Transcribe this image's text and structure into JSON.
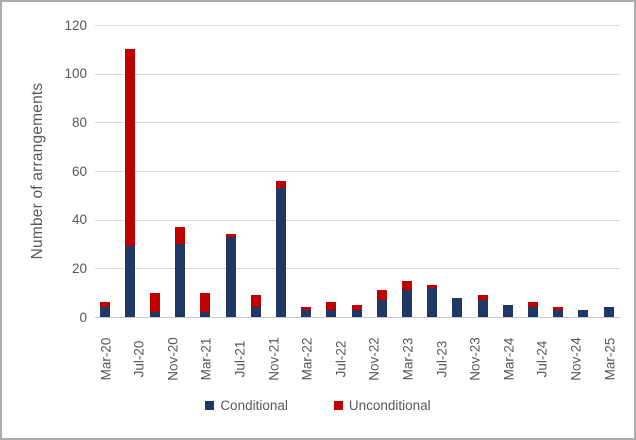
{
  "chart_data": {
    "type": "bar",
    "stacked": true,
    "title": "",
    "xlabel": "",
    "ylabel": "Number of arrangements",
    "ylim": [
      0,
      120
    ],
    "yticks": [
      0,
      20,
      40,
      60,
      80,
      100,
      120
    ],
    "grid": true,
    "legend_position": "bottom",
    "bar_interval_months": 3,
    "label_interval_months": 4,
    "x_tick_labels": [
      "Mar-20",
      "Jul-20",
      "Nov-20",
      "Mar-21",
      "Jul-21",
      "Nov-21",
      "Mar-22",
      "Jul-22",
      "Nov-22",
      "Mar-23",
      "Jul-23",
      "Nov-23",
      "Mar-24",
      "Jul-24",
      "Nov-24",
      "Mar-25"
    ],
    "categories": [
      "Mar-20",
      "Jun-20",
      "Sep-20",
      "Dec-20",
      "Mar-21",
      "Jun-21",
      "Sep-21",
      "Dec-21",
      "Mar-22",
      "Jun-22",
      "Sep-22",
      "Dec-22",
      "Mar-23",
      "Jun-23",
      "Sep-23",
      "Dec-23",
      "Mar-24",
      "Jun-24",
      "Sep-24",
      "Dec-24",
      "Mar-25"
    ],
    "series": [
      {
        "name": "Conditional",
        "color": "#1F3864",
        "values": [
          4,
          29,
          2,
          30,
          2,
          33,
          4,
          53,
          3,
          3,
          3,
          7,
          11,
          12,
          8,
          7,
          5,
          4,
          3,
          3,
          4
        ]
      },
      {
        "name": "Unconditional",
        "color": "#C00000",
        "values": [
          2,
          81,
          8,
          7,
          8,
          1,
          5,
          3,
          1,
          3,
          2,
          4,
          4,
          1,
          0,
          2,
          0,
          2,
          1,
          0,
          0
        ]
      }
    ]
  },
  "colors": {
    "conditional": "#1F3864",
    "unconditional": "#C00000",
    "axis_text": "#595959",
    "gridline": "#D9D9D9",
    "frame_border": "#ABABAB",
    "background": "#FFFFFF"
  },
  "legend": {
    "conditional_label": "Conditional",
    "unconditional_label": "Unconditional"
  }
}
